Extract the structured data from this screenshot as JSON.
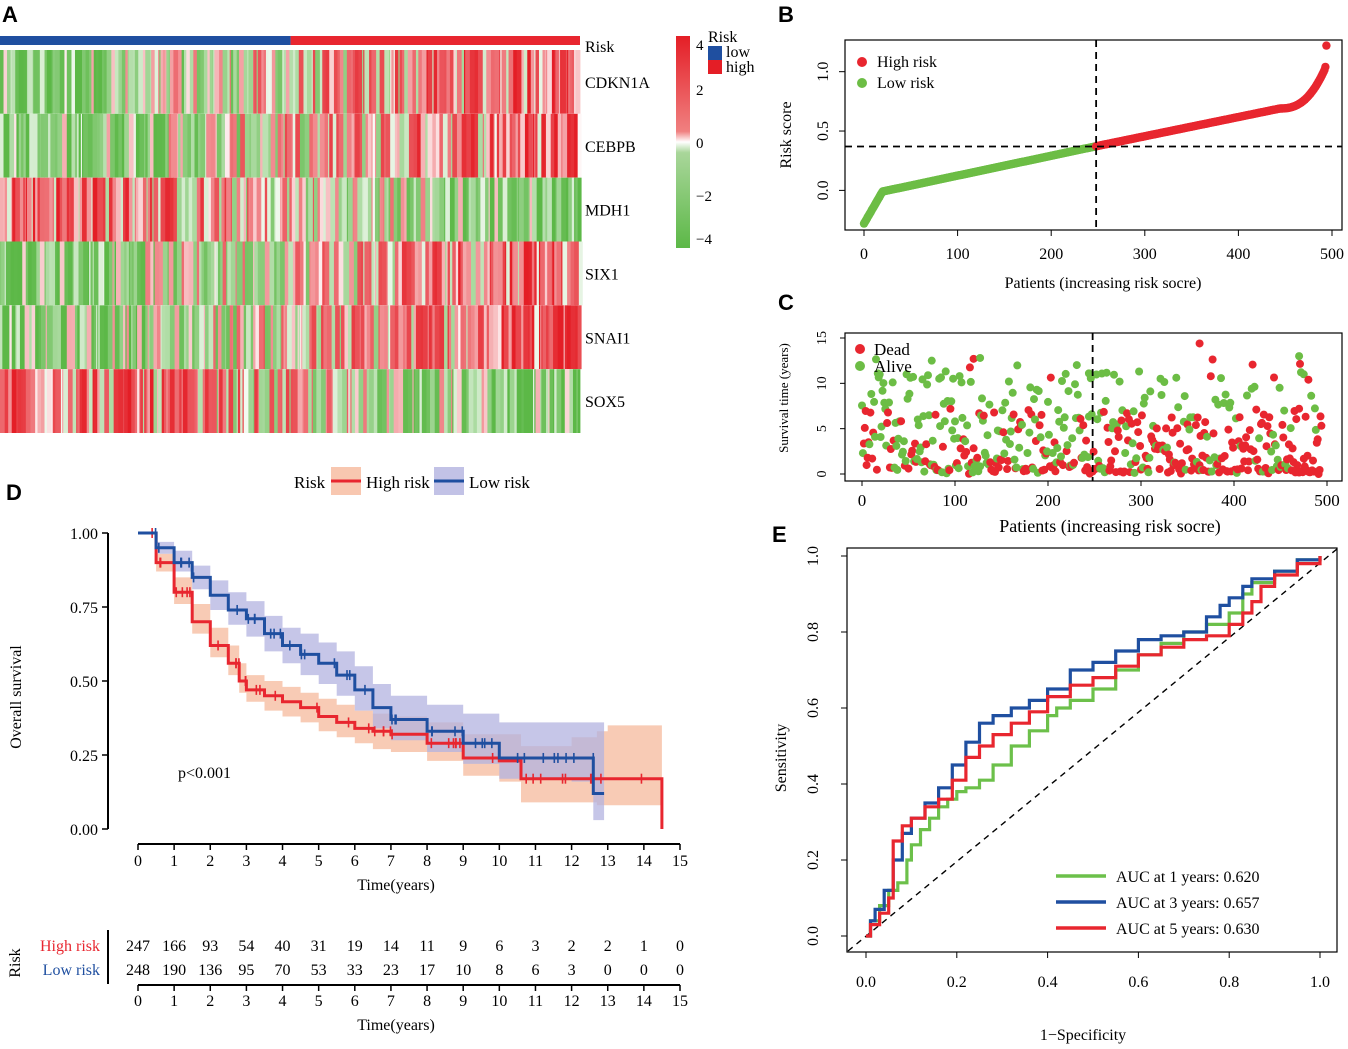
{
  "colors": {
    "high": "#e8262f",
    "low": "#1f4fa0",
    "green": "#6cbd45",
    "heat_red": "#e41e26",
    "heat_green": "#5cb847",
    "high_band": "#f6b99c",
    "low_band": "#b3b3e0",
    "auc_green": "#6cc04a"
  },
  "chart_data": [
    {
      "panel": "A",
      "type": "heatmap",
      "annotation_label": "Risk",
      "annotation_groups": [
        {
          "name": "low",
          "count": 248
        },
        {
          "name": "high",
          "count": 247
        }
      ],
      "rows": [
        "CDKN1A",
        "CEBPB",
        "MDH1",
        "SIX1",
        "SNAI1",
        "SOX5"
      ],
      "row_trend": [
        1,
        1,
        -1,
        1,
        1,
        -1
      ],
      "colorbar": {
        "title": "Risk",
        "ticks": [
          "4",
          "2",
          "0",
          "−2",
          "−4"
        ],
        "range": [
          -4,
          4
        ]
      },
      "legend": [
        "low",
        "high"
      ]
    },
    {
      "panel": "B",
      "type": "scatter",
      "title": "",
      "xlabel": "Patients (increasing risk socre)",
      "ylabel": "Risk score",
      "xlim": [
        0,
        500
      ],
      "ylim": [
        -0.3,
        1.25
      ],
      "xticks": [
        "0",
        "100",
        "200",
        "300",
        "400",
        "500"
      ],
      "yticks": [
        "0.0",
        "0.5",
        "1.0"
      ],
      "cutoff_index": 248,
      "cutoff_value": 0.37,
      "legend": [
        "High risk",
        "Low risk"
      ],
      "n": 495
    },
    {
      "panel": "C",
      "type": "scatter",
      "xlabel": "Patients (increasing risk socre)",
      "ylabel": "Survival time (years)",
      "xlim": [
        0,
        500
      ],
      "ylim": [
        0,
        15
      ],
      "xticks": [
        "0",
        "100",
        "200",
        "300",
        "400",
        "500"
      ],
      "yticks": [
        "0",
        "5",
        "10",
        "15"
      ],
      "cutoff_index": 248,
      "legend": [
        "Dead",
        "Alive"
      ]
    },
    {
      "panel": "D",
      "type": "line",
      "legend_title": "Risk",
      "legend": [
        "High risk",
        "Low risk"
      ],
      "xlabel": "Time(years)",
      "ylabel": "Overall survival",
      "xlim": [
        0,
        15
      ],
      "ylim": [
        0,
        1
      ],
      "xticks": [
        "0",
        "1",
        "2",
        "3",
        "4",
        "5",
        "6",
        "7",
        "8",
        "9",
        "10",
        "11",
        "12",
        "13",
        "14",
        "15"
      ],
      "yticks": [
        "0.00",
        "0.25",
        "0.50",
        "0.75",
        "1.00"
      ],
      "pvalue": "p<0.001",
      "series": [
        {
          "name": "High risk",
          "x": [
            0,
            0.5,
            1,
            1.5,
            2,
            2.5,
            2.8,
            3,
            3.5,
            4,
            4.5,
            5,
            5.5,
            6,
            6.5,
            7,
            8,
            9,
            10,
            10.6,
            11,
            12,
            12.7,
            13,
            14,
            14.5,
            14.5
          ],
          "y": [
            1,
            0.9,
            0.8,
            0.7,
            0.62,
            0.56,
            0.5,
            0.47,
            0.45,
            0.43,
            0.41,
            0.38,
            0.36,
            0.34,
            0.33,
            0.32,
            0.29,
            0.24,
            0.23,
            0.17,
            0.17,
            0.17,
            0.17,
            0.17,
            0.17,
            0.17,
            0.0
          ],
          "band_lo": [
            1,
            0.87,
            0.76,
            0.66,
            0.58,
            0.52,
            0.46,
            0.43,
            0.4,
            0.38,
            0.36,
            0.33,
            0.31,
            0.29,
            0.27,
            0.26,
            0.23,
            0.18,
            0.16,
            0.09,
            0.09,
            0.09,
            0.08,
            0.08,
            0.08,
            0.08,
            0.08
          ],
          "band_hi": [
            1,
            0.93,
            0.85,
            0.76,
            0.68,
            0.62,
            0.56,
            0.52,
            0.5,
            0.48,
            0.46,
            0.44,
            0.42,
            0.4,
            0.39,
            0.38,
            0.36,
            0.32,
            0.32,
            0.28,
            0.28,
            0.31,
            0.33,
            0.35,
            0.35,
            0.35,
            0.35
          ]
        },
        {
          "name": "Low risk",
          "x": [
            0,
            0.5,
            1,
            1.5,
            2,
            2.5,
            3,
            3.5,
            4,
            4.5,
            5,
            5.5,
            6,
            6.5,
            7,
            8,
            9,
            10,
            11,
            12,
            12.6,
            12.6,
            12.9
          ],
          "y": [
            1,
            0.95,
            0.9,
            0.85,
            0.79,
            0.74,
            0.71,
            0.66,
            0.62,
            0.59,
            0.56,
            0.52,
            0.47,
            0.41,
            0.37,
            0.33,
            0.29,
            0.24,
            0.24,
            0.24,
            0.24,
            0.12,
            0.12
          ],
          "band_lo": [
            1,
            0.93,
            0.87,
            0.81,
            0.74,
            0.69,
            0.65,
            0.6,
            0.56,
            0.52,
            0.49,
            0.45,
            0.4,
            0.34,
            0.3,
            0.26,
            0.22,
            0.17,
            0.17,
            0.16,
            0.16,
            0.03,
            0.03
          ],
          "band_hi": [
            1,
            0.97,
            0.94,
            0.89,
            0.84,
            0.8,
            0.77,
            0.72,
            0.68,
            0.66,
            0.63,
            0.6,
            0.55,
            0.49,
            0.45,
            0.42,
            0.39,
            0.36,
            0.36,
            0.36,
            0.36,
            0.36,
            0.36
          ]
        }
      ]
    },
    {
      "panel": "D-table",
      "type": "table",
      "title": "Risk",
      "xlabel": "Time(years)",
      "times": [
        "0",
        "1",
        "2",
        "3",
        "4",
        "5",
        "6",
        "7",
        "8",
        "9",
        "10",
        "11",
        "12",
        "13",
        "14",
        "15"
      ],
      "rows": [
        {
          "name": "High risk",
          "values": [
            "247",
            "166",
            "93",
            "54",
            "40",
            "31",
            "19",
            "14",
            "11",
            "9",
            "6",
            "3",
            "2",
            "2",
            "1",
            "0"
          ]
        },
        {
          "name": "Low risk",
          "values": [
            "248",
            "190",
            "136",
            "95",
            "70",
            "53",
            "33",
            "23",
            "17",
            "10",
            "8",
            "6",
            "3",
            "0",
            "0",
            "0"
          ]
        }
      ]
    },
    {
      "panel": "E",
      "type": "line",
      "xlabel": "1−Specificity",
      "ylabel": "Sensitivity",
      "xlim": [
        0,
        1
      ],
      "ylim": [
        0,
        1
      ],
      "xticks": [
        "0.0",
        "0.2",
        "0.4",
        "0.6",
        "0.8",
        "1.0"
      ],
      "yticks": [
        "0.0",
        "0.2",
        "0.4",
        "0.6",
        "0.8",
        "1.0"
      ],
      "series": [
        {
          "name": "AUC at 1 years: 0.620",
          "x": [
            0,
            0.01,
            0.03,
            0.05,
            0.07,
            0.09,
            0.1,
            0.12,
            0.14,
            0.16,
            0.18,
            0.2,
            0.22,
            0.25,
            0.28,
            0.32,
            0.36,
            0.4,
            0.42,
            0.45,
            0.5,
            0.55,
            0.6,
            0.65,
            0.7,
            0.75,
            0.8,
            0.83,
            0.85,
            0.9,
            0.95,
            1
          ],
          "y": [
            0,
            0.04,
            0.08,
            0.12,
            0.14,
            0.2,
            0.24,
            0.28,
            0.31,
            0.34,
            0.36,
            0.38,
            0.39,
            0.41,
            0.45,
            0.5,
            0.54,
            0.58,
            0.6,
            0.62,
            0.65,
            0.7,
            0.74,
            0.77,
            0.8,
            0.82,
            0.85,
            0.9,
            0.93,
            0.96,
            0.99,
            1
          ]
        },
        {
          "name": "AUC at 3 years: 0.657",
          "x": [
            0,
            0.01,
            0.02,
            0.04,
            0.06,
            0.08,
            0.1,
            0.13,
            0.16,
            0.19,
            0.22,
            0.25,
            0.28,
            0.32,
            0.36,
            0.4,
            0.45,
            0.5,
            0.55,
            0.6,
            0.65,
            0.7,
            0.75,
            0.78,
            0.8,
            0.83,
            0.85,
            0.9,
            0.95,
            1
          ],
          "y": [
            0,
            0.04,
            0.07,
            0.12,
            0.2,
            0.27,
            0.31,
            0.35,
            0.39,
            0.45,
            0.51,
            0.56,
            0.58,
            0.6,
            0.62,
            0.65,
            0.7,
            0.72,
            0.75,
            0.78,
            0.79,
            0.8,
            0.84,
            0.87,
            0.89,
            0.92,
            0.94,
            0.96,
            0.99,
            1
          ]
        },
        {
          "name": "AUC at 5 years: 0.630",
          "x": [
            0,
            0.01,
            0.03,
            0.05,
            0.06,
            0.06,
            0.08,
            0.1,
            0.13,
            0.16,
            0.19,
            0.22,
            0.25,
            0.28,
            0.32,
            0.36,
            0.4,
            0.45,
            0.5,
            0.55,
            0.6,
            0.65,
            0.7,
            0.75,
            0.8,
            0.83,
            0.85,
            0.87,
            0.9,
            0.95,
            1
          ],
          "y": [
            0,
            0.03,
            0.06,
            0.1,
            0.13,
            0.25,
            0.29,
            0.31,
            0.34,
            0.36,
            0.41,
            0.47,
            0.5,
            0.53,
            0.56,
            0.59,
            0.63,
            0.66,
            0.68,
            0.71,
            0.74,
            0.76,
            0.78,
            0.79,
            0.82,
            0.85,
            0.88,
            0.92,
            0.95,
            0.98,
            1
          ]
        }
      ]
    }
  ]
}
